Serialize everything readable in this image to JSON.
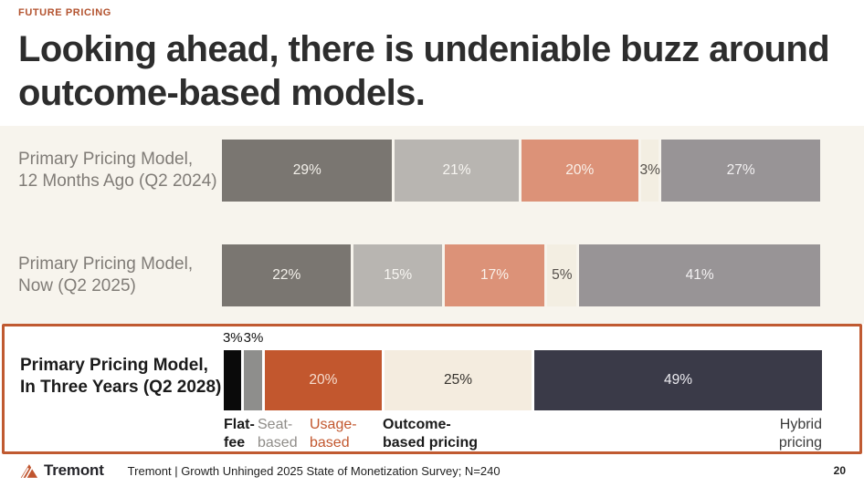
{
  "eyebrow": "FUTURE PRICING",
  "title": "Looking ahead, there is undeniable buzz around outcome-based models.",
  "chart_data": {
    "type": "bar",
    "stacked": true,
    "orientation": "horizontal",
    "unit": "%",
    "xlim": [
      0,
      100
    ],
    "categories": [
      "Flat-fee",
      "Seat-based",
      "Usage-based",
      "Outcome-based pricing",
      "Hybrid pricing"
    ],
    "rows": [
      {
        "label_line1": "Primary Pricing Model,",
        "label_line2": "12 Months Ago (Q2 2024)",
        "values": [
          29,
          21,
          20,
          3,
          27
        ],
        "highlight": false
      },
      {
        "label_line1": "Primary Pricing Model,",
        "label_line2": "Now (Q2 2025)",
        "values": [
          22,
          15,
          17,
          5,
          41
        ],
        "highlight": false
      },
      {
        "label_line1": "Primary Pricing Model,",
        "label_line2": "In Three Years (Q2 2028)",
        "values": [
          3,
          3,
          20,
          25,
          49
        ],
        "highlight": true,
        "labels_above_max": 3
      }
    ],
    "palette_default": [
      {
        "bg": "#7a7671",
        "text": "#f3f0ea"
      },
      {
        "bg": "#b8b5b1",
        "text": "#f7f5f1"
      },
      {
        "bg": "#dc9278",
        "text": "#faf1ea"
      },
      {
        "bg": "#f3eee2",
        "text": "#55504b"
      },
      {
        "bg": "#989496",
        "text": "#f3f1f2"
      }
    ],
    "palette_highlight": [
      {
        "bg": "#0a0a0a",
        "text": "#ffffff"
      },
      {
        "bg": "#8e8e8c",
        "text": "#ffffff"
      },
      {
        "bg": "#c2572e",
        "text": "#f6ddcf"
      },
      {
        "bg": "#f4ecdf",
        "text": "#35322d"
      },
      {
        "bg": "#3a3a48",
        "text": "#edecf1"
      }
    ],
    "highlight_border_color": "#c05a31"
  },
  "axis_labels": [
    {
      "line1": "Flat-",
      "line2": "fee",
      "color": "#1a1a1a",
      "bold": true
    },
    {
      "line1": "Seat-",
      "line2": "based",
      "color": "#8f8c88",
      "bold": false
    },
    {
      "line1": "Usage-",
      "line2": "based",
      "color": "#c2572e",
      "bold": false
    },
    {
      "line1": "Outcome-",
      "line2": "based pricing",
      "color": "#1a1a1a",
      "bold": true
    },
    {
      "line1": "Hybrid",
      "line2": "pricing",
      "color": "#3a3a3a",
      "bold": false
    }
  ],
  "footer": {
    "brand": "Tremont",
    "source": "Tremont | Growth Unhinged 2025 State of Monetization Survey; N=240",
    "page": "20"
  }
}
